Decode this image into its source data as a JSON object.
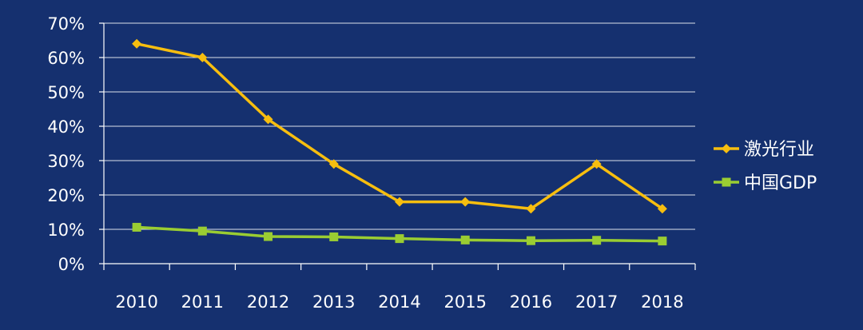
{
  "chart_data": {
    "type": "line",
    "categories": [
      "2010",
      "2011",
      "2012",
      "2013",
      "2014",
      "2015",
      "2016",
      "2017",
      "2018"
    ],
    "series": [
      {
        "name": "激光行业",
        "color": "#f7be0f",
        "marker": "diamond",
        "values": [
          64,
          60,
          42,
          29,
          18,
          18,
          16,
          29,
          16
        ]
      },
      {
        "name": "中国GDP",
        "color": "#9acd32",
        "marker": "square",
        "values": [
          10.6,
          9.5,
          7.9,
          7.8,
          7.3,
          6.9,
          6.7,
          6.8,
          6.6
        ]
      }
    ],
    "y_ticks": [
      "0%",
      "10%",
      "20%",
      "30%",
      "40%",
      "50%",
      "60%",
      "70%"
    ],
    "ylim": [
      0,
      70
    ],
    "y_unit": "%",
    "grid": true,
    "legend_position": "right",
    "colors": {
      "background": "#15306f",
      "grid": "#ffffff",
      "text": "#ffffff"
    }
  }
}
